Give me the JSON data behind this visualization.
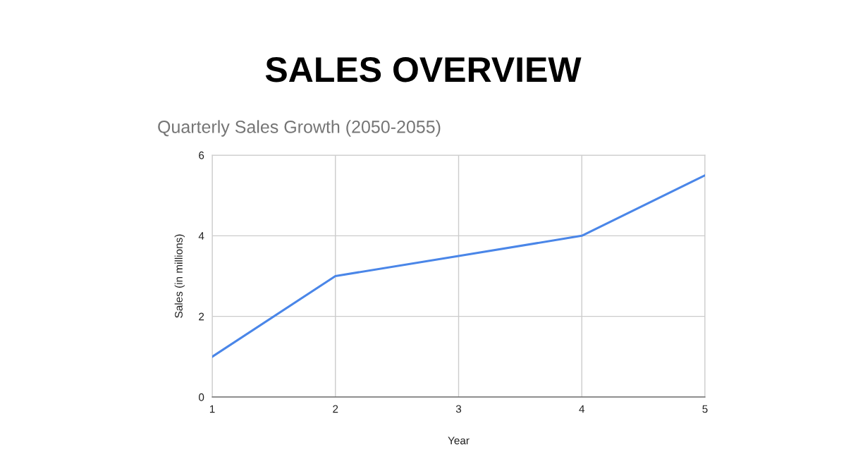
{
  "chart_data": {
    "type": "line",
    "title": "SALES OVERVIEW",
    "subtitle": "Quarterly Sales Growth (2050-2055)",
    "xlabel": "Year",
    "ylabel": "Sales (in millions)",
    "x": [
      1,
      2,
      3,
      4,
      5
    ],
    "series": [
      {
        "color": "#4a86e8",
        "values": [
          1,
          3,
          3.5,
          4,
          5.5
        ]
      }
    ],
    "xlim": [
      1,
      5
    ],
    "xticks": [
      1,
      2,
      3,
      4,
      5
    ],
    "ylim": [
      0,
      6
    ],
    "yticks": [
      0,
      2,
      4,
      6
    ],
    "grid": true,
    "legend": false,
    "marker": "none",
    "line_style": "solid"
  }
}
